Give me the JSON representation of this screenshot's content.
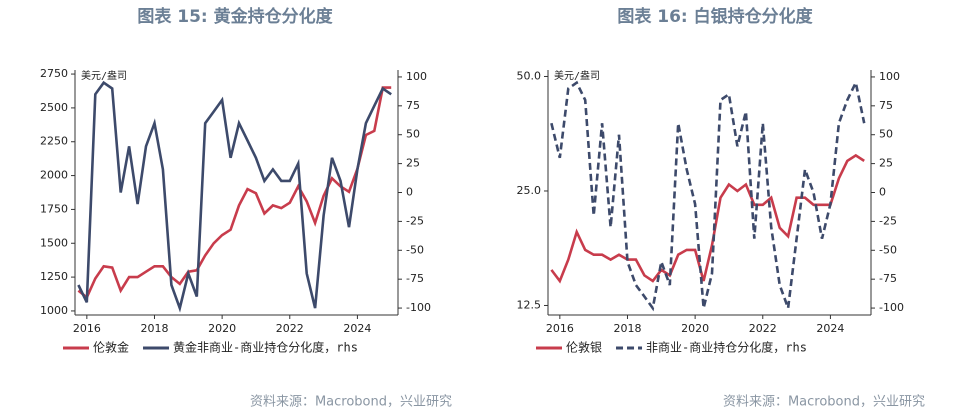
{
  "chart_data": [
    {
      "type": "line",
      "title": "图表 15: 黄金持仓分化度",
      "y_label": "美元/盎司",
      "source": "资料来源：Macrobond，兴业研究",
      "x": [
        2015.75,
        2016.0,
        2016.25,
        2016.5,
        2016.75,
        2017.0,
        2017.25,
        2017.5,
        2017.75,
        2018.0,
        2018.25,
        2018.5,
        2018.75,
        2019.0,
        2019.25,
        2019.5,
        2019.75,
        2020.0,
        2020.25,
        2020.5,
        2020.75,
        2021.0,
        2021.25,
        2021.5,
        2021.75,
        2022.0,
        2022.25,
        2022.5,
        2022.75,
        2023.0,
        2023.25,
        2023.5,
        2023.75,
        2024.0,
        2024.25,
        2024.5,
        2024.75,
        2025.0
      ],
      "series": [
        {
          "name": "伦敦金",
          "color": "#c83c4c",
          "line_style": "solid",
          "values": [
            1150,
            1100,
            1240,
            1330,
            1320,
            1150,
            1250,
            1250,
            1290,
            1330,
            1330,
            1250,
            1200,
            1290,
            1300,
            1410,
            1500,
            1560,
            1600,
            1780,
            1900,
            1870,
            1720,
            1780,
            1760,
            1800,
            1920,
            1810,
            1650,
            1850,
            1980,
            1920,
            1880,
            2050,
            2300,
            2330,
            2650,
            2650
          ]
        },
        {
          "name": "黄金非商业-商业持仓分化度，rhs",
          "color": "#3d4a6b",
          "line_style": "solid",
          "axis": "y2",
          "values": [
            -80,
            -95,
            85,
            95,
            90,
            0,
            40,
            -10,
            40,
            60,
            20,
            -80,
            -100,
            -70,
            -90,
            60,
            70,
            80,
            30,
            60,
            45,
            30,
            10,
            20,
            10,
            10,
            25,
            -70,
            -100,
            -20,
            30,
            10,
            -30,
            20,
            60,
            75,
            90,
            85
          ]
        }
      ],
      "xlim": [
        2015.65,
        2025.2
      ],
      "xticks": [
        2016,
        2018,
        2020,
        2022,
        2024
      ],
      "ylim": [
        970,
        2780
      ],
      "yticks": [
        1000,
        1250,
        1500,
        1750,
        2000,
        2250,
        2500,
        2750
      ],
      "log_scale": false,
      "y2lim": [
        -106,
        106
      ],
      "y2ticks": [
        -100,
        -75,
        -50,
        -25,
        0,
        25,
        50,
        75,
        100
      ]
    },
    {
      "type": "line",
      "title": "图表 16: 白银持仓分化度",
      "y_label": "美元/盎司",
      "source": "资料来源：Macrobond，兴业研究",
      "x": [
        2015.75,
        2016.0,
        2016.25,
        2016.5,
        2016.75,
        2017.0,
        2017.25,
        2017.5,
        2017.75,
        2018.0,
        2018.25,
        2018.5,
        2018.75,
        2019.0,
        2019.25,
        2019.5,
        2019.75,
        2020.0,
        2020.25,
        2020.5,
        2020.75,
        2021.0,
        2021.25,
        2021.5,
        2021.75,
        2022.0,
        2022.25,
        2022.5,
        2022.75,
        2023.0,
        2023.25,
        2023.5,
        2023.75,
        2024.0,
        2024.25,
        2024.5,
        2024.75,
        2025.0
      ],
      "series": [
        {
          "name": "伦敦银",
          "color": "#c83c4c",
          "line_style": "solid",
          "values": [
            15.5,
            14.5,
            16.5,
            19.5,
            17.5,
            17,
            17,
            16.5,
            17,
            16.5,
            16.5,
            15,
            14.5,
            15.5,
            15,
            17,
            17.5,
            17.5,
            14.5,
            18,
            24,
            26,
            25,
            26,
            23,
            23,
            24,
            20,
            19,
            24,
            24,
            23,
            23,
            23,
            27,
            30,
            31,
            30
          ]
        },
        {
          "name": "非商业-商业持仓分化度，rhs",
          "color": "#3d4a6b",
          "line_style": "dashed",
          "axis": "y2",
          "values": [
            60,
            30,
            90,
            95,
            80,
            -20,
            60,
            -30,
            50,
            -60,
            -80,
            -90,
            -100,
            -60,
            -80,
            60,
            20,
            -10,
            -100,
            -70,
            80,
            85,
            40,
            70,
            -40,
            60,
            -30,
            -80,
            -100,
            -40,
            20,
            0,
            -40,
            -10,
            60,
            80,
            95,
            60
          ]
        }
      ],
      "xlim": [
        2015.65,
        2025.2
      ],
      "xticks": [
        2016,
        2018,
        2020,
        2022,
        2024
      ],
      "ylim": [
        11.8,
        52
      ],
      "yticks": [
        12.5,
        {
          "value": 25,
          "label": "25.0"
        },
        {
          "value": 50,
          "label": "50.0"
        }
      ],
      "log_scale": true,
      "y2lim": [
        -106,
        106
      ],
      "y2ticks": [
        -100,
        -75,
        -50,
        -25,
        0,
        25,
        50,
        75,
        100
      ]
    }
  ]
}
